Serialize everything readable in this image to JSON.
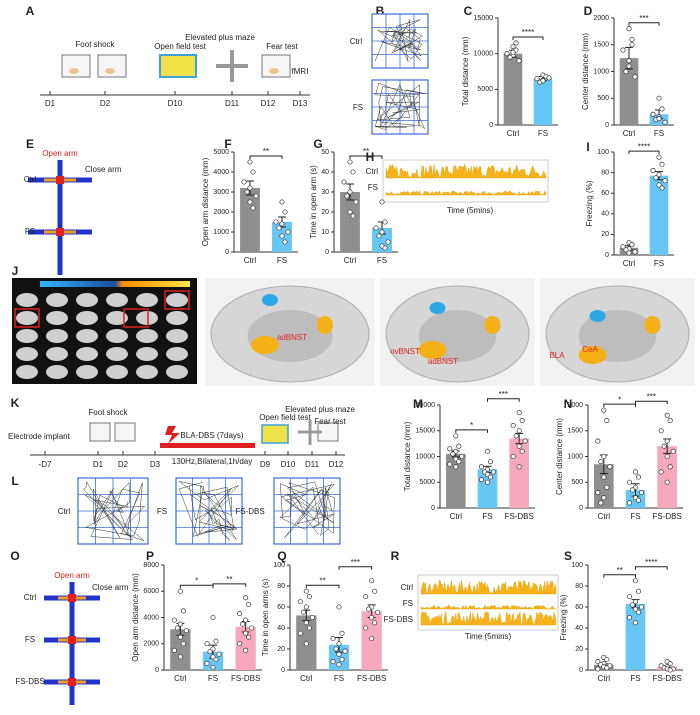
{
  "panels": [
    "A",
    "B",
    "C",
    "D",
    "E",
    "F",
    "G",
    "H",
    "I",
    "J",
    "K",
    "L",
    "M",
    "N",
    "O",
    "P",
    "Q",
    "R",
    "S"
  ],
  "timeline_a": {
    "events": [
      "Foot shock",
      "Open field test",
      "Elevated plus maze",
      "Fear test",
      "fMRI"
    ],
    "days": [
      "D1",
      "D2",
      "D10",
      "D11",
      "D12",
      "D13"
    ]
  },
  "tracks_b": {
    "labels": [
      "Ctrl",
      "FS"
    ]
  },
  "maze_e": {
    "open_arm": "Open arm",
    "close_arm": "Close arm",
    "labels": [
      "Ctrl",
      "FS"
    ]
  },
  "trace_h": {
    "labels": [
      "Ctrl",
      "FS"
    ],
    "xlabel": "Time (5mins)"
  },
  "brain_j": {
    "labels": [
      "adBNST",
      "ovBNST",
      "adBNST",
      "BLA",
      "CeA"
    ]
  },
  "timeline_k": {
    "events": [
      "Electrode implant",
      "Foot shock",
      "BLA-DBS (7days)",
      "130Hz,Bilateral,1h/day",
      "Open field test",
      "Elevated plus maze",
      "Fear test"
    ],
    "days": [
      "-D7",
      "D1",
      "D2",
      "D3",
      "D9",
      "D10",
      "D11",
      "D12"
    ]
  },
  "tracks_l": {
    "labels": [
      "Ctrl",
      "FS",
      "FS-DBS"
    ]
  },
  "maze_o": {
    "open_arm": "Open arm",
    "close_arm": "Close arm",
    "labels": [
      "Ctrl",
      "FS",
      "FS-DBS"
    ]
  },
  "trace_r": {
    "labels": [
      "Ctrl",
      "FS",
      "FS-DBS"
    ],
    "xlabel": "Time (5mins)"
  },
  "chart_data": [
    {
      "type": "bar",
      "ylabel": "Total distance (mm)",
      "categories": [
        "Ctrl",
        "FS"
      ],
      "colors": [
        "#8f8f8f",
        "#66c6f4"
      ],
      "values": [
        10000,
        6500
      ],
      "errors": [
        500,
        300
      ],
      "points": [
        [
          11000,
          10500,
          10000,
          9800,
          9500,
          9000,
          10200,
          11500
        ],
        [
          7000,
          6800,
          6500,
          6300,
          6000,
          6600,
          6200
        ]
      ],
      "ylim": [
        0,
        15000
      ],
      "yticks": [
        0,
        5000,
        10000,
        15000
      ],
      "significance": [
        "****"
      ]
    },
    {
      "type": "bar",
      "ylabel": "Center distance (mm)",
      "categories": [
        "Ctrl",
        "FS"
      ],
      "colors": [
        "#8f8f8f",
        "#66c6f4"
      ],
      "values": [
        1250,
        200
      ],
      "errors": [
        200,
        80
      ],
      "points": [
        [
          1800,
          1600,
          1400,
          1200,
          1000,
          900,
          1100,
          1500
        ],
        [
          500,
          300,
          200,
          150,
          100,
          50,
          120
        ]
      ],
      "ylim": [
        0,
        2000
      ],
      "yticks": [
        0,
        500,
        1000,
        1500,
        2000
      ],
      "significance": [
        "***"
      ]
    },
    {
      "type": "bar",
      "ylabel": "Open arm distance (mm)",
      "categories": [
        "Ctrl",
        "FS"
      ],
      "colors": [
        "#8f8f8f",
        "#66c6f4"
      ],
      "values": [
        3200,
        1500
      ],
      "errors": [
        350,
        250
      ],
      "points": [
        [
          4500,
          4000,
          3500,
          3200,
          3000,
          2800,
          2500,
          2200
        ],
        [
          2500,
          2000,
          1500,
          1400,
          1200,
          1000,
          800,
          500
        ]
      ],
      "ylim": [
        0,
        5000
      ],
      "yticks": [
        0,
        1000,
        2000,
        3000,
        4000,
        5000
      ],
      "significance": [
        "**"
      ]
    },
    {
      "type": "bar",
      "ylabel": "Time in open arm (s)",
      "categories": [
        "Ctrl",
        "FS"
      ],
      "colors": [
        "#8f8f8f",
        "#66c6f4"
      ],
      "values": [
        30,
        12
      ],
      "errors": [
        4,
        3
      ],
      "points": [
        [
          45,
          40,
          35,
          30,
          28,
          25,
          20,
          18
        ],
        [
          25,
          15,
          12,
          10,
          8,
          5,
          3,
          2
        ]
      ],
      "ylim": [
        0,
        50
      ],
      "yticks": [
        0,
        10,
        20,
        30,
        40,
        50
      ],
      "significance": [
        "**"
      ]
    },
    {
      "type": "bar",
      "ylabel": "Freezing (%)",
      "categories": [
        "Ctrl",
        "FS"
      ],
      "colors": [
        "#8f8f8f",
        "#66c6f4"
      ],
      "values": [
        7,
        77
      ],
      "errors": [
        2,
        4
      ],
      "points": [
        [
          12,
          10,
          8,
          6,
          5,
          3,
          2
        ],
        [
          95,
          88,
          82,
          78,
          75,
          72,
          68,
          65
        ]
      ],
      "ylim": [
        0,
        100
      ],
      "yticks": [
        0,
        20,
        40,
        60,
        80,
        100
      ],
      "significance": [
        "****"
      ]
    },
    {
      "type": "bar",
      "ylabel": "Total distance (mm)",
      "categories": [
        "Ctrl",
        "FS",
        "FS-DBS"
      ],
      "colors": [
        "#8f8f8f",
        "#66c6f4",
        "#f7a8bd"
      ],
      "values": [
        10500,
        7500,
        13500
      ],
      "errors": [
        600,
        600,
        1000
      ],
      "points": [
        [
          14000,
          12000,
          11500,
          11000,
          10500,
          10000,
          9500,
          9000,
          8500,
          8000
        ],
        [
          11000,
          9000,
          8000,
          7500,
          7000,
          7000,
          6500,
          6000,
          5500,
          5000
        ],
        [
          18500,
          17000,
          16000,
          15000,
          14000,
          13000,
          12000,
          11000,
          10000,
          8000
        ]
      ],
      "ylim": [
        0,
        20000
      ],
      "yticks": [
        0,
        5000,
        10000,
        15000,
        20000
      ],
      "significance": [
        "*",
        "***"
      ]
    },
    {
      "type": "bar",
      "ylabel": "Center distance (mm)",
      "categories": [
        "Ctrl",
        "FS",
        "FS-DBS"
      ],
      "colors": [
        "#8f8f8f",
        "#66c6f4",
        "#f7a8bd"
      ],
      "values": [
        850,
        350,
        1200
      ],
      "errors": [
        180,
        120,
        140
      ],
      "points": [
        [
          1900,
          1700,
          1300,
          1000,
          900,
          800,
          600,
          400,
          300,
          200,
          100
        ],
        [
          700,
          600,
          500,
          400,
          350,
          300,
          200,
          150,
          100
        ],
        [
          1800,
          1700,
          1500,
          1300,
          1200,
          1100,
          1000,
          800,
          700,
          500
        ]
      ],
      "ylim": [
        0,
        2000
      ],
      "yticks": [
        0,
        500,
        1000,
        1500,
        2000
      ],
      "significance": [
        "*",
        "***"
      ]
    },
    {
      "type": "bar",
      "ylabel": "Open arm distance (mm)",
      "categories": [
        "Ctrl",
        "FS",
        "FS-DBS"
      ],
      "colors": [
        "#8f8f8f",
        "#66c6f4",
        "#f7a8bd"
      ],
      "values": [
        3100,
        1400,
        3300
      ],
      "errors": [
        450,
        500,
        400
      ],
      "points": [
        [
          6000,
          4500,
          3800,
          3500,
          3200,
          3000,
          2500,
          2000,
          1500,
          1000
        ],
        [
          4000,
          2200,
          2000,
          1600,
          1400,
          1200,
          1000,
          800,
          500,
          200
        ],
        [
          5500,
          5000,
          4300,
          3800,
          3500,
          3200,
          2800,
          2500,
          2000,
          1500
        ]
      ],
      "ylim": [
        0,
        8000
      ],
      "yticks": [
        0,
        2000,
        4000,
        6000,
        8000
      ],
      "significance": [
        "*",
        "**"
      ]
    },
    {
      "type": "bar",
      "ylabel": "Time in open arms (s)",
      "categories": [
        "Ctrl",
        "FS",
        "FS-DBS"
      ],
      "colors": [
        "#8f8f8f",
        "#66c6f4",
        "#f7a8bd"
      ],
      "values": [
        52,
        24,
        56
      ],
      "errors": [
        5,
        7,
        6
      ],
      "points": [
        [
          75,
          70,
          65,
          60,
          55,
          50,
          45,
          40,
          35,
          25
        ],
        [
          60,
          35,
          30,
          25,
          20,
          18,
          15,
          10,
          8,
          5
        ],
        [
          85,
          75,
          70,
          60,
          58,
          55,
          50,
          45,
          40,
          30
        ]
      ],
      "ylim": [
        0,
        100
      ],
      "yticks": [
        0,
        20,
        40,
        60,
        80,
        100
      ],
      "significance": [
        "**",
        "***"
      ]
    },
    {
      "type": "bar",
      "ylabel": "Freezing (%)",
      "categories": [
        "Ctrl",
        "FS",
        "FS-DBS"
      ],
      "colors": [
        "#8f8f8f",
        "#66c6f4",
        "#f7a8bd"
      ],
      "values": [
        5,
        63,
        3
      ],
      "errors": [
        1,
        4,
        1
      ],
      "points": [
        [
          12,
          10,
          8,
          6,
          5,
          4,
          3,
          2,
          1
        ],
        [
          85,
          75,
          70,
          65,
          62,
          60,
          58,
          55,
          50,
          45
        ],
        [
          8,
          6,
          4,
          3,
          2,
          1,
          1,
          0
        ]
      ],
      "ylim": [
        0,
        100
      ],
      "yticks": [
        0,
        20,
        40,
        60,
        80,
        100
      ],
      "significance": [
        "**",
        "****"
      ]
    }
  ]
}
